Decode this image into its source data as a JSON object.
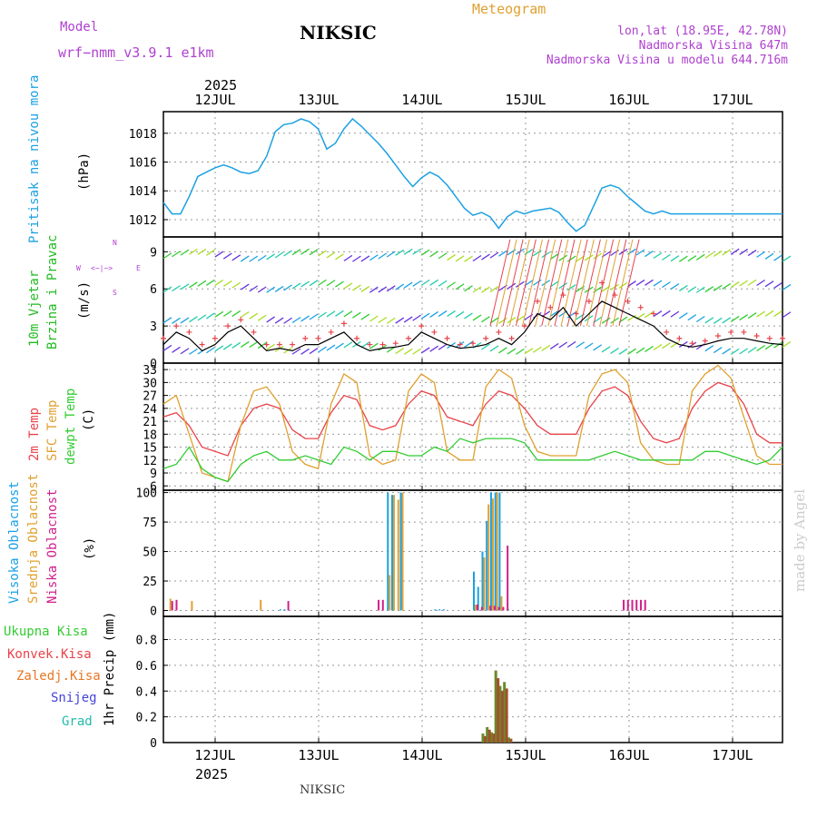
{
  "header": {
    "model_label": "Model",
    "model_name": "wrf−nmm_v3.9.1  e1km",
    "station": "NIKSIC",
    "product": "Meteogram",
    "coords": "lon,lat (18.95E, 42.78N)",
    "elevation": "Nadmorska Visina 647m",
    "model_elevation": "Nadmorska Visina u modelu 644.716m",
    "footer_station": "NIKSIC",
    "credit": "made by Angel"
  },
  "time_axis": {
    "year": "2025",
    "days": [
      "12JUL",
      "13JUL",
      "14JUL",
      "15JUL",
      "16JUL",
      "17JUL"
    ],
    "hours_span": [
      0,
      144
    ]
  },
  "colors": {
    "pressure": "#1ba1e2",
    "wind_label": "#22bb22",
    "temp2m": "#e8434a",
    "sfc": "#e0a030",
    "dewpt": "#33cc33",
    "cloud_high": "#1ba1e2",
    "cloud_mid": "#e0a030",
    "cloud_low": "#d0208a",
    "precip_total": "#33cc33",
    "precip_conv": "#e8434a",
    "precip_frozen": "#e87722",
    "snow": "#4444dd",
    "graupel": "#22bbaa",
    "legend_purple": "#b040d0"
  },
  "chart_data": [
    {
      "type": "line",
      "panel": "pressure",
      "label_lines": [
        "Pritisak na nivou mora",
        "(hPa)"
      ],
      "ylim": [
        1010.8,
        1019.5
      ],
      "yticks": [
        1012,
        1014,
        1016,
        1018
      ],
      "x": [
        0,
        2,
        4,
        6,
        8,
        10,
        12,
        14,
        16,
        18,
        20,
        22,
        24,
        26,
        28,
        30,
        32,
        34,
        36,
        38,
        40,
        42,
        44,
        46,
        48,
        50,
        52,
        54,
        56,
        58,
        60,
        62,
        64,
        66,
        68,
        70,
        72,
        74,
        76,
        78,
        80,
        82,
        84,
        86,
        88,
        90,
        92,
        94,
        96,
        98,
        100,
        102,
        104,
        106,
        108,
        110,
        112,
        114,
        116,
        118,
        120,
        122,
        124,
        126,
        128,
        130,
        132,
        134,
        136,
        138,
        140,
        142,
        144
      ],
      "values": [
        1013.2,
        1012.4,
        1012.4,
        1013.6,
        1015.0,
        1015.3,
        1015.6,
        1015.8,
        1015.6,
        1015.3,
        1015.2,
        1015.4,
        1016.4,
        1018.1,
        1018.6,
        1018.7,
        1019.0,
        1018.8,
        1018.3,
        1016.9,
        1017.3,
        1018.3,
        1019.0,
        1018.5,
        1017.9,
        1017.3,
        1016.6,
        1015.8,
        1015.0,
        1014.3,
        1014.9,
        1015.3,
        1015.0,
        1014.4,
        1013.6,
        1012.8,
        1012.3,
        1012.5,
        1012.2,
        1011.4,
        1012.2,
        1012.6,
        1012.4,
        1012.6,
        1012.7,
        1012.8,
        1012.5,
        1011.8,
        1011.2,
        1011.6,
        1012.9,
        1014.2,
        1014.4,
        1014.2,
        1013.6,
        1013.1,
        1012.6,
        1012.4,
        1012.6,
        1012.4,
        1012.4,
        1012.4,
        1012.4,
        1012.4,
        1012.4,
        1012.4,
        1012.4,
        1012.4,
        1012.4,
        1012.4,
        1012.4,
        1012.4,
        1012.4
      ]
    },
    {
      "type": "line",
      "panel": "wind",
      "label_lines": [
        "10m Vjetar",
        "Brzina i Pravac",
        "(m/s)"
      ],
      "direction_legend": "W <−|−> E   N, S",
      "ylim": [
        0,
        10.2
      ],
      "yticks": [
        0,
        3,
        6,
        9
      ],
      "series": [
        {
          "name": "speed",
          "x": [
            0,
            3,
            6,
            9,
            12,
            15,
            18,
            21,
            24,
            27,
            30,
            33,
            36,
            39,
            42,
            45,
            48,
            51,
            54,
            57,
            60,
            63,
            66,
            69,
            72,
            75,
            78,
            81,
            84,
            87,
            90,
            93,
            96,
            99,
            102,
            105,
            108,
            111,
            114,
            117,
            120,
            123,
            126,
            129,
            132,
            135,
            138,
            141,
            144
          ],
          "values": [
            1.5,
            2.5,
            2.0,
            1.0,
            1.5,
            2.5,
            3.0,
            2.0,
            1.0,
            1.2,
            1.0,
            1.5,
            1.5,
            2.0,
            2.5,
            1.5,
            1.0,
            1.2,
            1.3,
            1.5,
            2.5,
            2.0,
            1.5,
            1.2,
            1.3,
            1.5,
            2.0,
            1.5,
            2.5,
            4.0,
            3.5,
            4.5,
            3.0,
            4.0,
            5.0,
            4.5,
            4.0,
            3.5,
            3.0,
            2.0,
            1.5,
            1.3,
            1.5,
            1.8,
            2.0,
            2.0,
            1.8,
            1.6,
            1.5
          ]
        },
        {
          "name": "gust",
          "x": [
            0,
            3,
            6,
            9,
            12,
            15,
            18,
            21,
            24,
            27,
            30,
            33,
            36,
            39,
            42,
            45,
            48,
            51,
            54,
            57,
            60,
            63,
            66,
            69,
            72,
            75,
            78,
            81,
            84,
            87,
            90,
            93,
            96,
            99,
            102,
            105,
            108,
            111,
            114,
            117,
            120,
            123,
            126,
            129,
            132,
            135,
            138,
            141,
            144
          ],
          "values": [
            2.0,
            3.0,
            2.5,
            1.5,
            2.0,
            3.0,
            3.5,
            2.5,
            1.5,
            1.5,
            1.5,
            2.0,
            2.0,
            2.5,
            3.2,
            2.0,
            1.5,
            1.5,
            1.6,
            2.0,
            3.0,
            2.5,
            2.0,
            1.5,
            1.6,
            2.0,
            2.5,
            2.0,
            3.0,
            5.0,
            4.5,
            5.5,
            4.0,
            5.0,
            6.5,
            5.5,
            5.0,
            4.5,
            4.0,
            2.5,
            2.0,
            1.6,
            1.8,
            2.2,
            2.5,
            2.5,
            2.2,
            2.0,
            2.0
          ]
        }
      ]
    },
    {
      "type": "line",
      "panel": "temperature",
      "label_lines": [
        "2m Temp",
        "SFC Temp",
        "dewpt Temp",
        "(C)"
      ],
      "ylim": [
        5,
        34.5
      ],
      "yticks": [
        6,
        9,
        12,
        15,
        18,
        21,
        24,
        27,
        30,
        33
      ],
      "series": [
        {
          "name": "2m Temp",
          "x": [
            0,
            3,
            6,
            9,
            12,
            15,
            18,
            21,
            24,
            27,
            30,
            33,
            36,
            39,
            42,
            45,
            48,
            51,
            54,
            57,
            60,
            63,
            66,
            69,
            72,
            75,
            78,
            81,
            84,
            87,
            90,
            93,
            96,
            99,
            102,
            105,
            108,
            111,
            114,
            117,
            120,
            123,
            126,
            129,
            132,
            135,
            138,
            141,
            144
          ],
          "values": [
            22,
            23,
            20,
            15,
            14,
            13,
            20,
            24,
            25,
            24,
            19,
            17,
            17,
            23,
            27,
            26,
            20,
            19,
            20,
            25,
            28,
            27,
            22,
            21,
            20,
            25,
            28,
            27,
            24,
            20,
            18,
            18,
            18,
            24,
            28,
            29,
            27,
            21,
            17,
            16,
            17,
            24,
            28,
            30,
            29,
            25,
            18,
            16,
            16
          ]
        },
        {
          "name": "SFC Temp",
          "x": [
            0,
            3,
            6,
            9,
            12,
            15,
            18,
            21,
            24,
            27,
            30,
            33,
            36,
            39,
            42,
            45,
            48,
            51,
            54,
            57,
            60,
            63,
            66,
            69,
            72,
            75,
            78,
            81,
            84,
            87,
            90,
            93,
            96,
            99,
            102,
            105,
            108,
            111,
            114,
            117,
            120,
            123,
            126,
            129,
            132,
            135,
            138,
            141,
            144
          ],
          "values": [
            25,
            27,
            18,
            9,
            8,
            7,
            20,
            28,
            29,
            25,
            14,
            11,
            10,
            25,
            32,
            30,
            13,
            11,
            12,
            28,
            32,
            30,
            14,
            12,
            12,
            29,
            33,
            31,
            20,
            14,
            13,
            13,
            13,
            27,
            32,
            33,
            30,
            16,
            12,
            11,
            11,
            28,
            32,
            34,
            31,
            22,
            13,
            11,
            11
          ]
        },
        {
          "name": "dewpt Temp",
          "x": [
            0,
            3,
            6,
            9,
            12,
            15,
            18,
            21,
            24,
            27,
            30,
            33,
            36,
            39,
            42,
            45,
            48,
            51,
            54,
            57,
            60,
            63,
            66,
            69,
            72,
            75,
            78,
            81,
            84,
            87,
            90,
            93,
            96,
            99,
            102,
            105,
            108,
            111,
            114,
            117,
            120,
            123,
            126,
            129,
            132,
            135,
            138,
            141,
            144
          ],
          "values": [
            10,
            11,
            15,
            10,
            8,
            7,
            11,
            13,
            14,
            12,
            12,
            13,
            12,
            11,
            15,
            14,
            12,
            14,
            14,
            13,
            13,
            15,
            14,
            17,
            16,
            17,
            17,
            17,
            16,
            12,
            12,
            12,
            12,
            12,
            13,
            14,
            13,
            12,
            12,
            12,
            12,
            12,
            14,
            14,
            13,
            12,
            11,
            12,
            15
          ]
        }
      ]
    },
    {
      "type": "bar",
      "panel": "clouds",
      "label_lines": [
        "Visoka Oblacnost",
        "Srednja Oblacnost",
        "Niska Oblacnost",
        "(%)"
      ],
      "ylim": [
        -5,
        102
      ],
      "yticks": [
        0,
        25,
        50,
        75,
        100
      ],
      "series": [
        {
          "name": "Visoka Oblacnost",
          "x": [
            27,
            28,
            52,
            53,
            55,
            63,
            64,
            65,
            72,
            73,
            74,
            75,
            76,
            77,
            78,
            80
          ],
          "values": [
            1,
            1,
            100,
            98,
            100,
            1,
            1,
            1,
            33,
            20,
            50,
            76,
            100,
            100,
            100,
            1
          ]
        },
        {
          "name": "Srednja Oblacnost",
          "x": [
            1,
            6,
            22,
            52,
            53,
            54,
            55,
            72,
            74,
            75,
            76,
            77,
            78
          ],
          "values": [
            10,
            8,
            9,
            30,
            98,
            94,
            100,
            5,
            45,
            90,
            95,
            100,
            12
          ]
        },
        {
          "name": "Niska Oblacnost",
          "x": [
            1,
            2,
            28,
            49,
            50,
            72,
            73,
            75,
            76,
            77,
            78,
            79,
            106,
            107,
            108,
            109,
            110,
            111
          ],
          "values": [
            8,
            9,
            8,
            9,
            9,
            5,
            3,
            4,
            4,
            3,
            3,
            55,
            9,
            9,
            9,
            9,
            9,
            9
          ]
        }
      ]
    },
    {
      "type": "bar",
      "panel": "precip",
      "label_lines": [
        "1hr Precip (mm)"
      ],
      "legend": [
        "Ukupna Kisa",
        "Konvek.Kisa",
        "Zaledj.Kisa",
        "Snijeg",
        "Grad"
      ],
      "ylim": [
        0,
        0.98
      ],
      "yticks": [
        0,
        0.2,
        0.4,
        0.6,
        0.8
      ],
      "series": [
        {
          "name": "Ukupna Kisa",
          "x": [
            74,
            75,
            76,
            77,
            78,
            79,
            80
          ],
          "values": [
            0.07,
            0.12,
            0.08,
            0.56,
            0.44,
            0.47,
            0.04
          ]
        },
        {
          "name": "Konvek.Kisa",
          "x": [
            74,
            75,
            76,
            77,
            78,
            79,
            80
          ],
          "values": [
            0.05,
            0.1,
            0.07,
            0.5,
            0.4,
            0.42,
            0.03
          ]
        }
      ]
    }
  ]
}
